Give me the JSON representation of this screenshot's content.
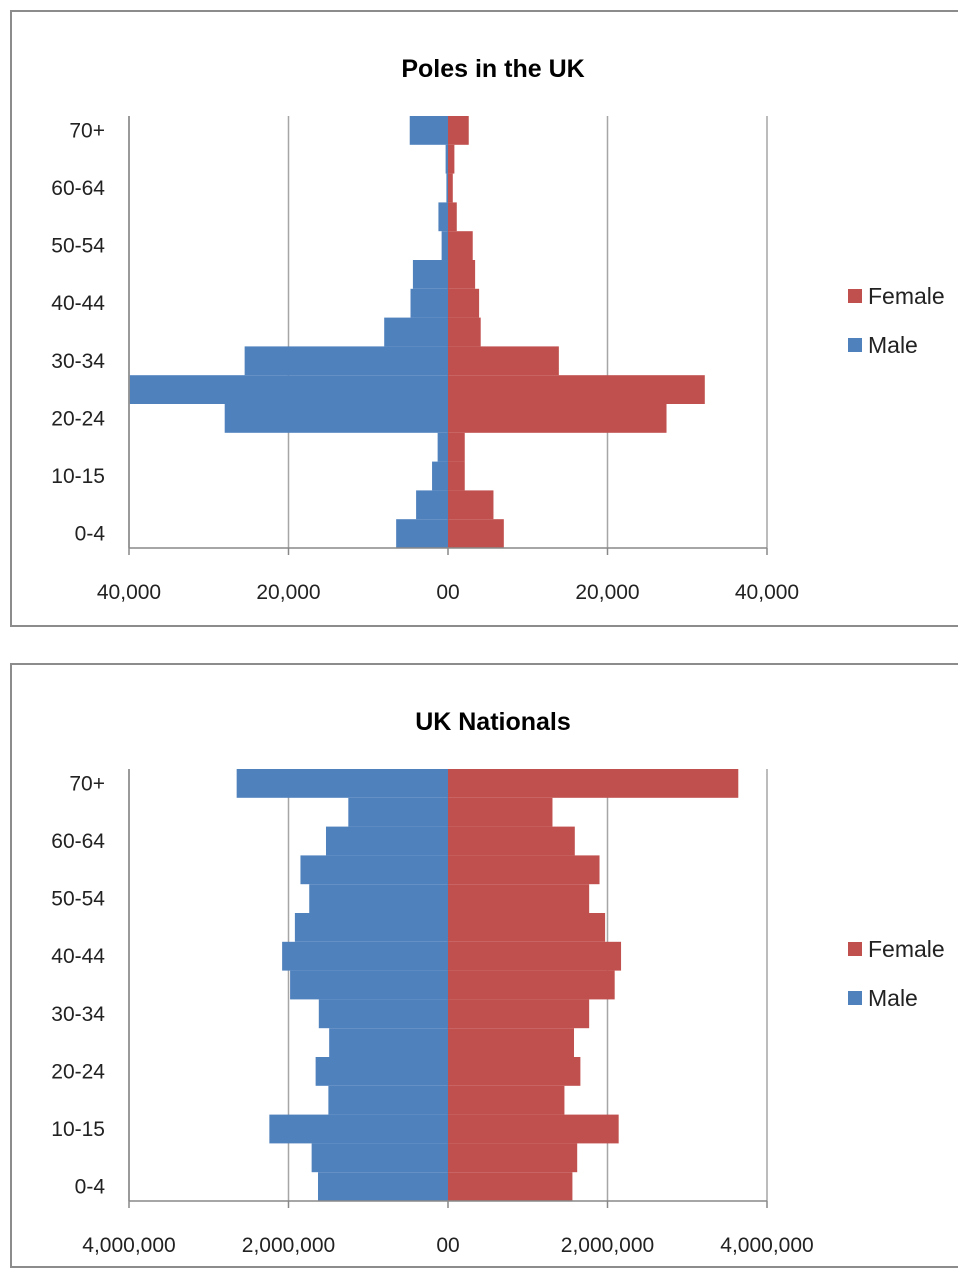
{
  "chart_data": [
    {
      "type": "bar",
      "subtype": "population-pyramid",
      "title": "Poles in the UK",
      "age_groups": [
        "0-4",
        "5-9",
        "10-15",
        "16-19",
        "20-24",
        "25-29",
        "30-34",
        "35-39",
        "40-44",
        "45-49",
        "50-54",
        "55-59",
        "60-64",
        "65-69",
        "70+"
      ],
      "y_tick_labels": [
        "0-4",
        "10-15",
        "20-24",
        "30-34",
        "40-44",
        "50-54",
        "60-64",
        "70+"
      ],
      "x_tick_labels": [
        "40,000",
        "20,000",
        "00",
        "20,000",
        "40,000"
      ],
      "xlim": [
        -40000,
        40000
      ],
      "x_ticks": [
        -40000,
        -20000,
        0,
        20000,
        40000
      ],
      "series": [
        {
          "name": "Female",
          "color": "#c0504d",
          "values": [
            7000,
            5700,
            2100,
            2100,
            27400,
            32200,
            13900,
            4100,
            3900,
            3400,
            3100,
            1100,
            600,
            800,
            2600
          ]
        },
        {
          "name": "Male",
          "color": "#4f81bd",
          "values": [
            -6500,
            -4000,
            -2000,
            -1300,
            -28000,
            -39900,
            -25500,
            -8000,
            -4700,
            -4400,
            -800,
            -1200,
            -200,
            -300,
            -4800
          ]
        }
      ],
      "legend": {
        "position": "right",
        "entries": [
          "Female",
          "Male"
        ]
      },
      "grid": {
        "vertical": true
      }
    },
    {
      "type": "bar",
      "subtype": "population-pyramid",
      "title": "UK Nationals",
      "age_groups": [
        "0-4",
        "5-9",
        "10-15",
        "16-19",
        "20-24",
        "25-29",
        "30-34",
        "35-39",
        "40-44",
        "45-49",
        "50-54",
        "55-59",
        "60-64",
        "65-69",
        "70+"
      ],
      "y_tick_labels": [
        "0-4",
        "10-15",
        "20-24",
        "30-34",
        "40-44",
        "50-54",
        "60-64",
        "70+"
      ],
      "x_tick_labels": [
        "4,000,000",
        "2,000,000",
        "00",
        "2,000,000",
        "4,000,000"
      ],
      "xlim": [
        -4000000,
        4000000
      ],
      "x_ticks": [
        -4000000,
        -2000000,
        0,
        2000000,
        4000000
      ],
      "series": [
        {
          "name": "Female",
          "color": "#c0504d",
          "values": [
            1560000,
            1620000,
            2140000,
            1460000,
            1660000,
            1580000,
            1770000,
            2090000,
            2170000,
            1970000,
            1770000,
            1900000,
            1590000,
            1310000,
            3640000
          ]
        },
        {
          "name": "Male",
          "color": "#4f81bd",
          "values": [
            -1630000,
            -1710000,
            -2240000,
            -1500000,
            -1660000,
            -1490000,
            -1620000,
            -1980000,
            -2080000,
            -1920000,
            -1740000,
            -1850000,
            -1530000,
            -1250000,
            -2650000
          ]
        }
      ],
      "legend": {
        "position": "right",
        "entries": [
          "Female",
          "Male"
        ]
      },
      "grid": {
        "vertical": true
      }
    }
  ]
}
